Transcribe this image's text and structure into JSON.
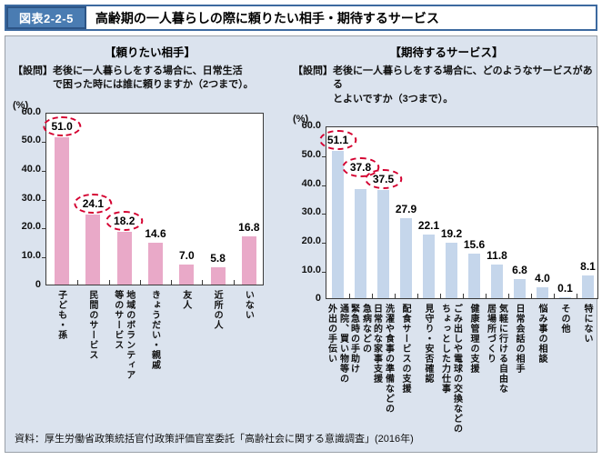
{
  "header": {
    "figure_label": "図表2-2-5",
    "title": "高齢期の一人暮らしの際に頼りたい相手・期待するサービス"
  },
  "source": "資料：厚生労働省政策統括官付政策評価官室委託「高齢社会に関する意識調査」(2016年)",
  "colors": {
    "panel_background": "#dbe3ee",
    "header_blue": "#4a7cb2",
    "header_dark_blue": "#2d5586",
    "left_bar": "#e9a9c8",
    "right_bar": "#c5d6eb",
    "circle_red": "#d40030"
  },
  "chart_data": [
    {
      "type": "bar",
      "title": "【頼りたい相手】",
      "question_label": "【設問】",
      "question": "老後に一人暮らしをする場合に、日常生活\nで困った時には誰に頼りますか（2つまで）。",
      "unit": "(%)",
      "bar_color": "#e9a9c8",
      "ylim": [
        0,
        60
      ],
      "yticks": [
        "60.0",
        "50.0",
        "40.0",
        "30.0",
        "20.0",
        "10.0",
        "0"
      ],
      "grid": false,
      "legend": "none",
      "categories": [
        "子ども・孫",
        "民間のサービス",
        "地域のボランティア\n等のサービス",
        "きょうだい・親戚",
        "友人",
        "近所の人",
        "いない"
      ],
      "values": [
        51.0,
        24.1,
        18.2,
        14.6,
        7.0,
        5.8,
        16.8
      ],
      "circled_values": [
        51.0,
        24.1,
        18.2
      ],
      "circled": [
        true,
        true,
        true,
        false,
        false,
        false,
        false
      ]
    },
    {
      "type": "bar",
      "title": "【期待するサービス】",
      "question_label": "【設問】",
      "question": "老後に一人暮らしをする場合に、どのようなサービスがある\nとよいですか（3つまで）。",
      "unit": "(%)",
      "bar_color": "#c5d6eb",
      "ylim": [
        0,
        60
      ],
      "yticks": [
        "60.0",
        "50.0",
        "40.0",
        "30.0",
        "20.0",
        "10.0",
        "0"
      ],
      "grid": false,
      "legend": "none",
      "categories": [
        "通院、買い物等の\n外出の手伝い",
        "急病などの\n緊急時の手助け",
        "洗濯や食事の準備などの\n日常的な家事支援",
        "配食サービスの支援",
        "見守り・安否確認",
        "ごみ出しや電球の交換などの\nちょっとした力仕事",
        "健康管理の支援",
        "気軽に行ける自由な\n居場所づくり",
        "日常会話の相手",
        "悩み事の相談",
        "その他",
        "特にない"
      ],
      "values": [
        51.1,
        37.8,
        37.5,
        27.9,
        22.1,
        19.2,
        15.6,
        11.8,
        6.8,
        4.0,
        0.1,
        8.1
      ],
      "circled_values": [
        51.1,
        37.8,
        37.5
      ],
      "circled": [
        true,
        true,
        true,
        false,
        false,
        false,
        false,
        false,
        false,
        false,
        false,
        false
      ]
    }
  ]
}
